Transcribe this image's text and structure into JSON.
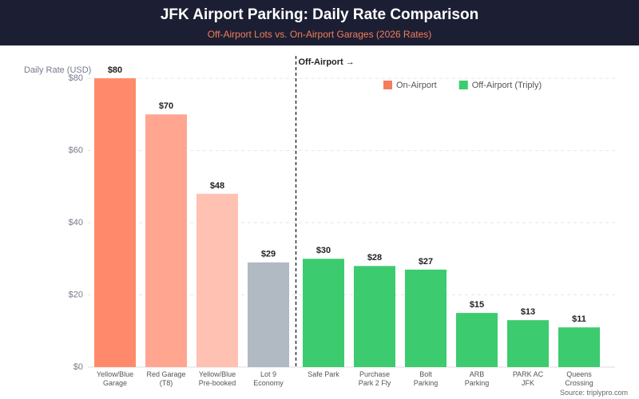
{
  "chart_data": {
    "type": "bar",
    "title": "JFK Airport Parking: Daily Rate Comparison",
    "subtitle": "Off-Airport Lots vs. On-Airport Garages (2026 Rates)",
    "y_label": "Daily Rate (USD)",
    "source": "Source: triplypro.com",
    "categories": [
      "Yellow/Blue\nGarage",
      "Red Garage\n(T8)",
      "Yellow/Blue\nPre-booked",
      "Lot 9\nEconomy",
      "Safe Park",
      "Purchase\nPark 2 Fly",
      "Bolt\nParking",
      "ARB\nParking",
      "PARK AC\nJFK",
      "Queens\nCrossing"
    ],
    "values": [
      80,
      70,
      48,
      29,
      30,
      28,
      27,
      15,
      13,
      11
    ],
    "value_labels": [
      "$80",
      "$70",
      "$48",
      "$29",
      "$30",
      "$28",
      "$27",
      "$15",
      "$13",
      "$11"
    ],
    "colors": [
      "#ff8a6b",
      "#ffa590",
      "#ffc1b2",
      "#b1b9c3",
      "#3ccb6e",
      "#3ccb6e",
      "#3ccb6e",
      "#3ccb6e",
      "#3ccb6e",
      "#3ccb6e"
    ],
    "legend": [
      {
        "name": "On-Airport",
        "color": "#f47c5c"
      },
      {
        "name": "Off-Airport (Triply)",
        "color": "#3ccb6e"
      }
    ],
    "divider": {
      "after_index": 3,
      "label": "Off-Airport →"
    },
    "ylim": [
      0,
      84
    ],
    "yticks": [
      {
        "value": 0,
        "label": "$0"
      },
      {
        "value": 20,
        "label": "$20"
      },
      {
        "value": 40,
        "label": "$40"
      },
      {
        "value": 60,
        "label": "$60"
      },
      {
        "value": 80,
        "label": "$80"
      }
    ],
    "grid": true
  }
}
